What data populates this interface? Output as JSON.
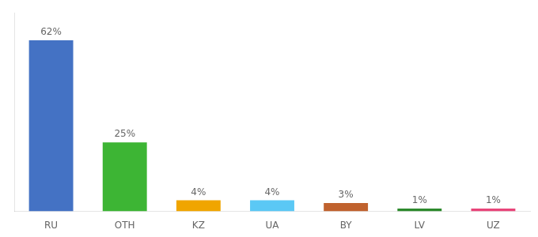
{
  "chart_data": {
    "type": "bar",
    "categories": [
      "RU",
      "OTH",
      "KZ",
      "UA",
      "BY",
      "LV",
      "UZ"
    ],
    "values": [
      62,
      25,
      4,
      4,
      3,
      1,
      1
    ],
    "value_labels": [
      "62%",
      "25%",
      "4%",
      "4%",
      "3%",
      "1%",
      "1%"
    ],
    "colors": [
      "#4472c4",
      "#3db534",
      "#f0a500",
      "#5bc8f5",
      "#c0622e",
      "#2d8a2d",
      "#e8457a"
    ],
    "ylim": [
      0,
      72
    ],
    "grid": false,
    "data_labels": true,
    "tick_labels": "x"
  }
}
